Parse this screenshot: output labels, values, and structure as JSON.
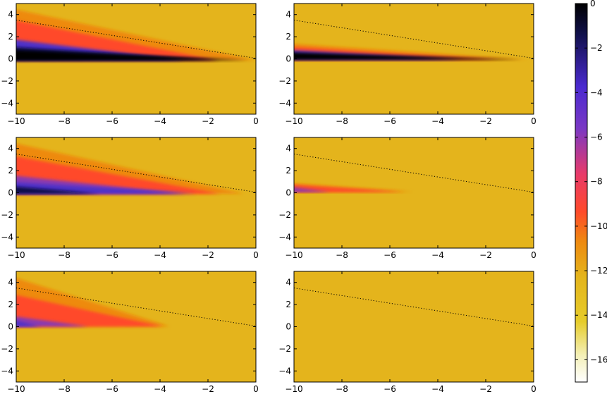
{
  "chart_data": {
    "type": "heatmap",
    "colormap": "gnuplot2-like (black - blue - red/orange - yellow - white)",
    "colors": {
      "background": "#e4b41c",
      "black": "#000000",
      "navy": "#10104a",
      "blue": "#5030c8",
      "purple": "#8a3ab0",
      "red": "#ff4a2a",
      "orange": "#ee8a10",
      "pale": "#f4f0b8",
      "white": "#ffffff",
      "dotted_line": "#000000"
    },
    "colorbar": {
      "range": [
        -17,
        0
      ],
      "ticks": [
        0,
        -2,
        -4,
        -6,
        -8,
        -10,
        -12,
        -14,
        -16
      ],
      "tick_labels": [
        "0",
        "−2",
        "−4",
        "−6",
        "−8",
        "−10",
        "−12",
        "−14",
        "−16"
      ]
    },
    "panels_common": {
      "xlim": [
        -10,
        0
      ],
      "ylim": [
        -5,
        5
      ],
      "xticks": [
        -10,
        -8,
        -6,
        -4,
        -2,
        0
      ],
      "xtick_labels": [
        "−10",
        "−8",
        "−6",
        "−4",
        "−2",
        "0"
      ],
      "yticks": [
        4,
        2,
        0,
        -2,
        -4
      ],
      "ytick_labels": [
        "4",
        "2",
        "0",
        "−2",
        "−4"
      ],
      "background_value": -12.5,
      "dotted_line": {
        "x": [
          -10,
          0
        ],
        "y": [
          3.5,
          0.05
        ]
      }
    },
    "panels": [
      {
        "id": "top-left",
        "upper_edge_y": 4.6,
        "tip_x": 0,
        "bottom_y": -0.15,
        "bands": [
          {
            "color": "orange",
            "top_y": 4.6,
            "tip_x": 0
          },
          {
            "color": "red",
            "top_y": 3.6,
            "tip_x": -1.6
          },
          {
            "color": "blue",
            "top_y": 1.8,
            "tip_x": -3.0
          },
          {
            "color": "navy",
            "top_y": 1.1,
            "tip_x": -1.5
          },
          {
            "color": "black",
            "top_y": 0.8,
            "tip_x": -0.3
          }
        ]
      },
      {
        "id": "top-right",
        "upper_edge_y": 1.4,
        "tip_x": 0,
        "bottom_y": -0.1,
        "bands": [
          {
            "color": "orange",
            "top_y": 1.4,
            "tip_x": -0.2
          },
          {
            "color": "red",
            "top_y": 1.1,
            "tip_x": -1.5
          },
          {
            "color": "blue",
            "top_y": 0.8,
            "tip_x": -3.0
          },
          {
            "color": "black",
            "top_y": 0.6,
            "tip_x": -0.5
          }
        ]
      },
      {
        "id": "middle-left",
        "upper_edge_y": 4.6,
        "tip_x": -0.5,
        "bottom_y": -0.1,
        "bands": [
          {
            "color": "orange",
            "top_y": 4.6,
            "tip_x": -0.5
          },
          {
            "color": "red",
            "top_y": 3.4,
            "tip_x": -1.5
          },
          {
            "color": "purple",
            "top_y": 1.6,
            "tip_x": -3.0
          },
          {
            "color": "blue",
            "top_y": 1.0,
            "tip_x": -2.5
          },
          {
            "color": "navy",
            "top_y": 0.6,
            "tip_x": -6.5
          }
        ]
      },
      {
        "id": "middle-right",
        "upper_edge_y": 0.9,
        "tip_x": -5.0,
        "bottom_y": 0.05,
        "bands": [
          {
            "color": "orange",
            "top_y": 0.9,
            "tip_x": -5.0
          },
          {
            "color": "red",
            "top_y": 0.75,
            "tip_x": -5.4
          },
          {
            "color": "purple",
            "top_y": 0.55,
            "tip_x": -8.5
          }
        ]
      },
      {
        "id": "bottom-left",
        "upper_edge_y": 4.6,
        "tip_x": -3.6,
        "bottom_y": 0.0,
        "bands": [
          {
            "color": "orange",
            "top_y": 4.6,
            "tip_x": -3.6
          },
          {
            "color": "red",
            "top_y": 3.0,
            "tip_x": -3.9
          },
          {
            "color": "purple",
            "top_y": 1.0,
            "tip_x": -7.0
          },
          {
            "color": "blue",
            "top_y": 0.7,
            "tip_x": -9.0
          }
        ]
      },
      {
        "id": "bottom-right",
        "upper_edge_y": null,
        "tip_x": null,
        "bottom_y": null,
        "bands": []
      }
    ]
  }
}
